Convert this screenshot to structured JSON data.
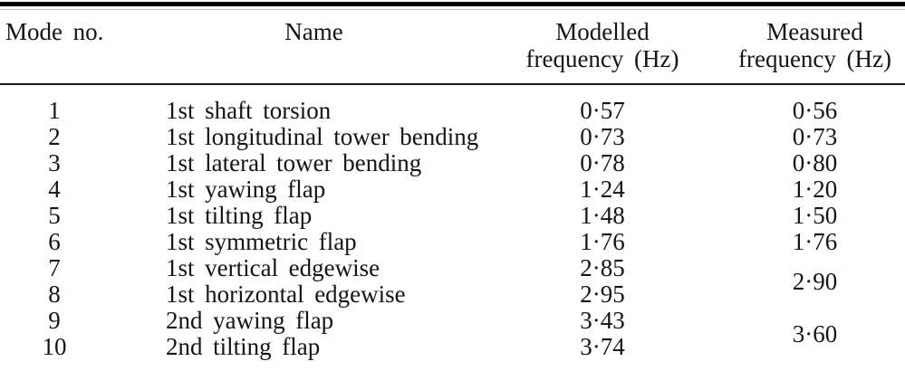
{
  "page": {
    "background": "#ffffff",
    "text_color": "#141414",
    "rule_color": "#000000"
  },
  "table": {
    "columns": [
      {
        "id": "mode",
        "label": "Mode no."
      },
      {
        "id": "name",
        "label": "Name"
      },
      {
        "id": "modelled",
        "label_line1": "Modelled",
        "label_line2": "frequency (Hz)"
      },
      {
        "id": "measured",
        "label_line1": "Measured",
        "label_line2": "frequency (Hz)"
      }
    ],
    "rows": [
      {
        "mode": "1",
        "name": "1st shaft torsion",
        "modelled": "0·57",
        "measured": "0·56"
      },
      {
        "mode": "2",
        "name": "1st longitudinal tower bending",
        "modelled": "0·73",
        "measured": "0·73"
      },
      {
        "mode": "3",
        "name": "1st lateral tower bending",
        "modelled": "0·78",
        "measured": "0·80"
      },
      {
        "mode": "4",
        "name": "1st yawing flap",
        "modelled": "1·24",
        "measured": "1·20"
      },
      {
        "mode": "5",
        "name": "1st tilting flap",
        "modelled": "1·48",
        "measured": "1·50"
      },
      {
        "mode": "6",
        "name": "1st symmetric flap",
        "modelled": "1·76",
        "measured": "1·76"
      },
      {
        "mode": "7",
        "name": "1st vertical edgewise",
        "modelled": "2·85",
        "measured": "2·90",
        "measured_spans_next_row": true
      },
      {
        "mode": "8",
        "name": "1st horizontal edgewise",
        "modelled": "2·95"
      },
      {
        "mode": "9",
        "name": "2nd yawing flap",
        "modelled": "3·43",
        "measured": "3·60",
        "measured_spans_next_row": true
      },
      {
        "mode": "10",
        "name": "2nd tilting flap",
        "modelled": "3·74"
      }
    ]
  }
}
